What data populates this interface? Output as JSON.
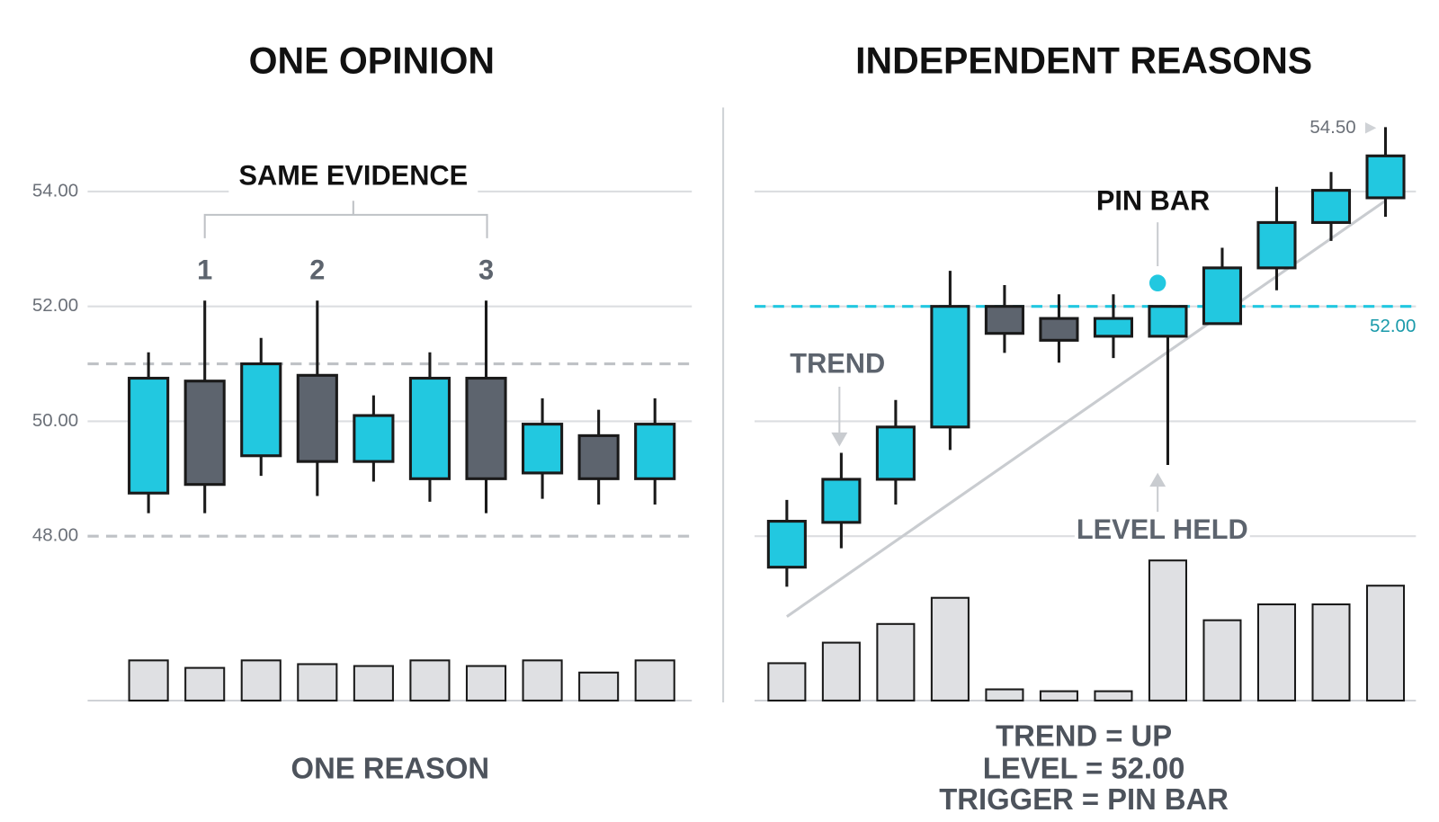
{
  "chart_data": [
    {
      "type": "candlestick",
      "title": "ONE OPINION",
      "up_color": "#22c8e0",
      "down_color": "#5d646e",
      "ylim": [
        46.5,
        55.5
      ],
      "yticks": [
        {
          "value": 48,
          "label": "48.00"
        },
        {
          "value": 50,
          "label": "50.00"
        },
        {
          "value": 52,
          "label": "52.00"
        },
        {
          "value": 54,
          "label": "54.00"
        }
      ],
      "grid": true,
      "open": [
        48.75,
        50.7,
        49.4,
        50.8,
        49.3,
        49.0,
        50.75,
        49.1,
        49.75,
        49.0
      ],
      "high": [
        51.2,
        52.1,
        51.45,
        52.1,
        50.45,
        51.2,
        52.1,
        50.4,
        50.2,
        50.4
      ],
      "low": [
        48.4,
        48.4,
        49.05,
        48.7,
        48.95,
        48.6,
        48.4,
        48.65,
        48.55,
        48.55
      ],
      "close": [
        50.75,
        48.9,
        51.0,
        49.3,
        50.1,
        50.75,
        49.0,
        49.95,
        49.0,
        49.95
      ],
      "volume": [
        43,
        35,
        43,
        39,
        37,
        43,
        37,
        43,
        30,
        43
      ],
      "dashed_levels": [
        51,
        48
      ],
      "bracket_label": "SAME EVIDENCE",
      "markers": [
        "1",
        "2",
        "3"
      ],
      "footer": [
        "ONE REASON"
      ]
    },
    {
      "type": "candlestick",
      "title": "INDEPENDENT REASONS",
      "up_color": "#22c8e0",
      "down_color": "#5d646e",
      "ylim": [
        46.5,
        55.5
      ],
      "ygrid": [
        48,
        50,
        52,
        54
      ],
      "open": [
        47.46,
        48.24,
        48.99,
        49.9,
        52.0,
        51.79,
        51.48,
        51.48,
        51.7,
        52.67,
        53.46,
        53.89
      ],
      "high": [
        48.63,
        49.45,
        50.37,
        52.62,
        52.37,
        52.21,
        52.21,
        52.0,
        53.02,
        54.08,
        54.34,
        55.12
      ],
      "low": [
        47.12,
        47.79,
        48.55,
        49.5,
        51.19,
        51.02,
        51.1,
        49.24,
        51.7,
        52.28,
        53.14,
        53.56
      ],
      "close": [
        48.26,
        48.99,
        49.9,
        52.0,
        51.53,
        51.41,
        51.79,
        52.0,
        52.67,
        53.46,
        54.02,
        54.62
      ],
      "volume": [
        40,
        62,
        82,
        110,
        12,
        10,
        10,
        150,
        86,
        103,
        103,
        123
      ],
      "level": {
        "value": 52,
        "label": "52.00"
      },
      "trendline": {
        "x": [
          0,
          11
        ],
        "y": [
          46.6,
          53.84
        ]
      },
      "annotations": {
        "trend": "TREND",
        "pin_bar": "PIN BAR",
        "level_held": "LEVEL HELD",
        "high_label": "54.50"
      },
      "footer": [
        "TREND = UP",
        "LEVEL = 52.00",
        "TRIGGER = PIN BAR"
      ]
    }
  ]
}
